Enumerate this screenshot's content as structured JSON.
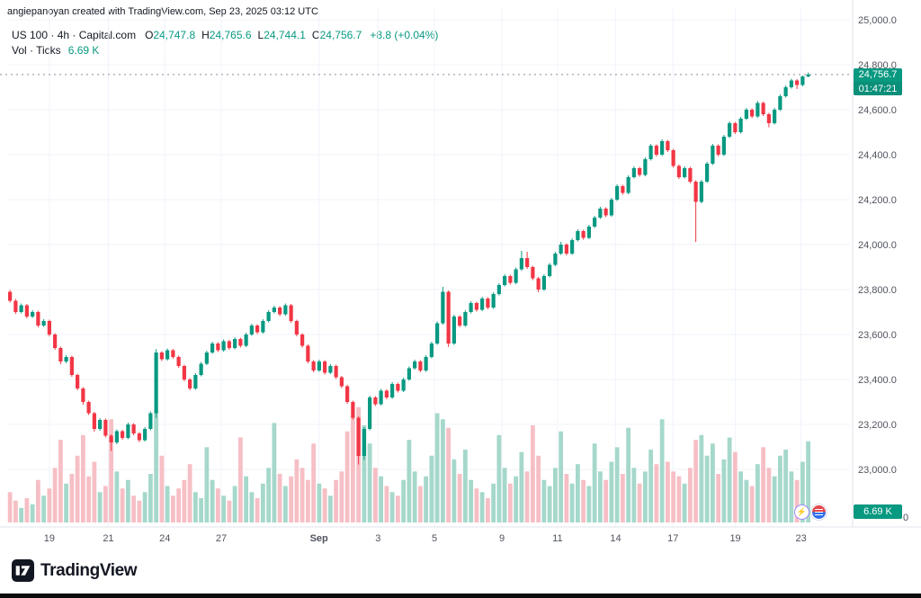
{
  "attribution": "angiepanoyan created with TradingView.com, Sep 23, 2025 03:12 UTC",
  "legend": {
    "symbol": "US 100 · 4h · Capital.com",
    "ohlc": [
      {
        "label": "O",
        "value": "24,747.8"
      },
      {
        "label": "H",
        "value": "24,765.6"
      },
      {
        "label": "L",
        "value": "24,744.1"
      },
      {
        "label": "C",
        "value": "24,756.7"
      }
    ],
    "change": "+8.8 (+0.04%)",
    "volume_label": "Vol · Ticks",
    "volume_value": "6.69 K"
  },
  "badges": {
    "last_price": "24,756.7",
    "countdown": "01:47:21",
    "volume": "6.69 K",
    "volume_axis_zero": "0"
  },
  "footer": {
    "logo_text": "TradingView"
  },
  "colors": {
    "up": "#089981",
    "down": "#f23645",
    "vol_up": "#a5d8cb",
    "vol_down": "#f6bfc5",
    "grid": "#f0f3fa",
    "axis_line": "#e0e3eb",
    "axis_text": "#50535e",
    "text": "#131722",
    "price_line": "#8a8e98",
    "badge": "#089981"
  },
  "chart_data": {
    "type": "candlestick",
    "title": "US 100 · 4h · Capital.com",
    "symbol": "US 100",
    "timeframe": "4h",
    "exchange": "Capital.com",
    "volume_pane": true,
    "volume_unit": "K",
    "grid": true,
    "last_price": 24756.7,
    "last_candle": {
      "o": 24747.8,
      "h": 24765.6,
      "l": 24744.1,
      "c": 24756.7,
      "change": 8.8,
      "change_pct": 0.04
    },
    "y_ticks": [
      {
        "v": 25000,
        "label": "25,000.0"
      },
      {
        "v": 24800,
        "label": "24,800.0"
      },
      {
        "v": 24600,
        "label": "24,600.0"
      },
      {
        "v": 24400,
        "label": "24,400.0"
      },
      {
        "v": 24200,
        "label": "24,200.0"
      },
      {
        "v": 24000,
        "label": "24,000.0"
      },
      {
        "v": 23800,
        "label": "23,800.0"
      },
      {
        "v": 23600,
        "label": "23,600.0"
      },
      {
        "v": 23400,
        "label": "23,400.0"
      },
      {
        "v": 23200,
        "label": "23,200.0"
      },
      {
        "v": 23000,
        "label": "23,000.0"
      }
    ],
    "x_ticks": [
      {
        "label": "19",
        "pos": 0.05,
        "bold": false
      },
      {
        "label": "21",
        "pos": 0.12,
        "bold": false
      },
      {
        "label": "24",
        "pos": 0.187,
        "bold": false
      },
      {
        "label": "27",
        "pos": 0.254,
        "bold": false
      },
      {
        "label": "Sep",
        "pos": 0.37,
        "bold": true
      },
      {
        "label": "3",
        "pos": 0.44,
        "bold": false
      },
      {
        "label": "5",
        "pos": 0.507,
        "bold": false
      },
      {
        "label": "9",
        "pos": 0.587,
        "bold": false
      },
      {
        "label": "11",
        "pos": 0.653,
        "bold": false
      },
      {
        "label": "14",
        "pos": 0.722,
        "bold": false
      },
      {
        "label": "17",
        "pos": 0.79,
        "bold": false
      },
      {
        "label": "19",
        "pos": 0.864,
        "bold": false
      },
      {
        "label": "23",
        "pos": 0.942,
        "bold": false
      }
    ],
    "ohlcv": [
      [
        23790,
        23798,
        23742,
        23750,
        2.5
      ],
      [
        23750,
        23758,
        23692,
        23700,
        1.8
      ],
      [
        23700,
        23738,
        23694,
        23730,
        1.2
      ],
      [
        23730,
        23736,
        23672,
        23680,
        2.0
      ],
      [
        23680,
        23708,
        23674,
        23700,
        1.5
      ],
      [
        23700,
        23706,
        23632,
        23640,
        3.5
      ],
      [
        23640,
        23668,
        23634,
        23660,
        2.2
      ],
      [
        23660,
        23666,
        23592,
        23600,
        2.8
      ],
      [
        23600,
        23606,
        23532,
        23540,
        4.5
      ],
      [
        23540,
        23546,
        23468,
        23480,
        6.8
      ],
      [
        23480,
        23508,
        23472,
        23500,
        3.2
      ],
      [
        23500,
        23506,
        23412,
        23420,
        4.0
      ],
      [
        23420,
        23426,
        23352,
        23360,
        5.5
      ],
      [
        23360,
        23366,
        23288,
        23300,
        7.2
      ],
      [
        23300,
        23306,
        23242,
        23250,
        3.8
      ],
      [
        23250,
        23256,
        23168,
        23180,
        5.0
      ],
      [
        23180,
        23228,
        23172,
        23220,
        2.5
      ],
      [
        23220,
        23226,
        23142,
        23150,
        3.0
      ],
      [
        23150,
        23156,
        23082,
        23120,
        8.5
      ],
      [
        23120,
        23178,
        23112,
        23170,
        4.2
      ],
      [
        23170,
        23176,
        23132,
        23140,
        2.8
      ],
      [
        23140,
        23208,
        23134,
        23200,
        3.5
      ],
      [
        23200,
        23206,
        23152,
        23160,
        2.2
      ],
      [
        23160,
        23166,
        23122,
        23130,
        1.8
      ],
      [
        23130,
        23188,
        23124,
        23180,
        2.5
      ],
      [
        23180,
        23258,
        23174,
        23250,
        4.0
      ],
      [
        23250,
        23535,
        23230,
        23520,
        9.2
      ],
      [
        23520,
        23526,
        23482,
        23490,
        5.5
      ],
      [
        23490,
        23538,
        23484,
        23530,
        3.0
      ],
      [
        23530,
        23536,
        23492,
        23500,
        2.2
      ],
      [
        23500,
        23506,
        23452,
        23460,
        2.8
      ],
      [
        23460,
        23466,
        23392,
        23400,
        3.5
      ],
      [
        23400,
        23406,
        23352,
        23360,
        4.8
      ],
      [
        23360,
        23428,
        23354,
        23420,
        2.5
      ],
      [
        23420,
        23478,
        23414,
        23470,
        2.0
      ],
      [
        23470,
        23528,
        23464,
        23520,
        6.2
      ],
      [
        23520,
        23568,
        23514,
        23560,
        3.5
      ],
      [
        23560,
        23566,
        23522,
        23530,
        2.8
      ],
      [
        23530,
        23578,
        23524,
        23570,
        2.2
      ],
      [
        23570,
        23576,
        23532,
        23540,
        1.8
      ],
      [
        23540,
        23588,
        23534,
        23580,
        3.0
      ],
      [
        23580,
        23586,
        23542,
        23550,
        7.0
      ],
      [
        23550,
        23608,
        23544,
        23600,
        3.8
      ],
      [
        23600,
        23648,
        23594,
        23640,
        2.5
      ],
      [
        23640,
        23646,
        23602,
        23610,
        2.0
      ],
      [
        23610,
        23668,
        23604,
        23660,
        3.2
      ],
      [
        23660,
        23708,
        23654,
        23700,
        4.5
      ],
      [
        23700,
        23728,
        23694,
        23720,
        8.2
      ],
      [
        23720,
        23726,
        23682,
        23690,
        4.0
      ],
      [
        23690,
        23738,
        23684,
        23730,
        3.0
      ],
      [
        23730,
        23736,
        23652,
        23660,
        3.8
      ],
      [
        23660,
        23666,
        23592,
        23600,
        5.2
      ],
      [
        23600,
        23606,
        23542,
        23550,
        4.5
      ],
      [
        23550,
        23556,
        23472,
        23480,
        3.5
      ],
      [
        23480,
        23486,
        23432,
        23440,
        6.5
      ],
      [
        23440,
        23488,
        23434,
        23480,
        3.2
      ],
      [
        23480,
        23486,
        23422,
        23430,
        2.8
      ],
      [
        23430,
        23468,
        23424,
        23460,
        2.2
      ],
      [
        23460,
        23466,
        23402,
        23410,
        3.5
      ],
      [
        23410,
        23416,
        23362,
        23370,
        4.2
      ],
      [
        23370,
        23376,
        23292,
        23300,
        7.5
      ],
      [
        23300,
        23306,
        23222,
        23230,
        8.8
      ],
      [
        23230,
        23236,
        23022,
        23060,
        9.5
      ],
      [
        23060,
        23188,
        23042,
        23180,
        8.0
      ],
      [
        23180,
        23328,
        23174,
        23320,
        6.5
      ],
      [
        23320,
        23326,
        23282,
        23290,
        4.5
      ],
      [
        23290,
        23358,
        23284,
        23350,
        3.8
      ],
      [
        23350,
        23356,
        23312,
        23320,
        3.0
      ],
      [
        23320,
        23388,
        23314,
        23380,
        2.5
      ],
      [
        23380,
        23386,
        23342,
        23350,
        2.2
      ],
      [
        23350,
        23408,
        23344,
        23400,
        3.5
      ],
      [
        23400,
        23458,
        23394,
        23450,
        6.8
      ],
      [
        23450,
        23488,
        23444,
        23480,
        4.2
      ],
      [
        23480,
        23486,
        23432,
        23440,
        3.0
      ],
      [
        23440,
        23508,
        23434,
        23500,
        3.8
      ],
      [
        23500,
        23568,
        23494,
        23560,
        5.5
      ],
      [
        23560,
        23658,
        23554,
        23650,
        9.0
      ],
      [
        23650,
        23812,
        23644,
        23790,
        8.5
      ],
      [
        23790,
        23796,
        23545,
        23560,
        7.8
      ],
      [
        23560,
        23688,
        23554,
        23680,
        5.2
      ],
      [
        23680,
        23686,
        23632,
        23640,
        4.0
      ],
      [
        23640,
        23708,
        23634,
        23700,
        6.0
      ],
      [
        23700,
        23748,
        23694,
        23740,
        3.5
      ],
      [
        23740,
        23746,
        23702,
        23710,
        2.8
      ],
      [
        23710,
        23768,
        23704,
        23760,
        2.5
      ],
      [
        23760,
        23766,
        23712,
        23720,
        2.0
      ],
      [
        23720,
        23788,
        23714,
        23780,
        3.2
      ],
      [
        23780,
        23828,
        23774,
        23820,
        7.2
      ],
      [
        23820,
        23868,
        23814,
        23860,
        4.5
      ],
      [
        23860,
        23866,
        23822,
        23830,
        3.2
      ],
      [
        23830,
        23898,
        23824,
        23890,
        3.8
      ],
      [
        23890,
        23972,
        23884,
        23940,
        5.8
      ],
      [
        23940,
        23968,
        23892,
        23900,
        4.2
      ],
      [
        23900,
        23906,
        23842,
        23850,
        8.0
      ],
      [
        23850,
        23856,
        23788,
        23800,
        5.5
      ],
      [
        23800,
        23868,
        23794,
        23860,
        3.5
      ],
      [
        23860,
        23918,
        23854,
        23910,
        3.0
      ],
      [
        23910,
        23968,
        23904,
        23960,
        4.5
      ],
      [
        23960,
        24012,
        23954,
        24000,
        7.5
      ],
      [
        24000,
        24006,
        23952,
        23960,
        4.0
      ],
      [
        23960,
        24028,
        23954,
        24020,
        3.2
      ],
      [
        24020,
        24068,
        24014,
        24060,
        4.8
      ],
      [
        24060,
        24066,
        24022,
        24030,
        3.5
      ],
      [
        24030,
        24088,
        24024,
        24080,
        3.0
      ],
      [
        24080,
        24128,
        24074,
        24120,
        6.5
      ],
      [
        24120,
        24168,
        24114,
        24160,
        4.2
      ],
      [
        24160,
        24166,
        24122,
        24130,
        3.5
      ],
      [
        24130,
        24208,
        24124,
        24200,
        5.0
      ],
      [
        24200,
        24268,
        24194,
        24260,
        6.2
      ],
      [
        24260,
        24266,
        24222,
        24230,
        4.0
      ],
      [
        24230,
        24308,
        24224,
        24300,
        7.8
      ],
      [
        24300,
        24348,
        24294,
        24340,
        4.5
      ],
      [
        24340,
        24346,
        24302,
        24310,
        3.2
      ],
      [
        24310,
        24388,
        24304,
        24380,
        4.2
      ],
      [
        24380,
        24448,
        24374,
        24440,
        6.0
      ],
      [
        24440,
        24446,
        24392,
        24400,
        4.8
      ],
      [
        24400,
        24468,
        24394,
        24460,
        8.5
      ],
      [
        24460,
        24466,
        24412,
        24420,
        5.0
      ],
      [
        24420,
        24426,
        24342,
        24350,
        4.2
      ],
      [
        24350,
        24356,
        24292,
        24300,
        3.8
      ],
      [
        24300,
        24348,
        24294,
        24340,
        3.2
      ],
      [
        24340,
        24346,
        24272,
        24280,
        4.5
      ],
      [
        24280,
        24286,
        24012,
        24190,
        6.8
      ],
      [
        24190,
        24288,
        24184,
        24280,
        7.2
      ],
      [
        24280,
        24368,
        24274,
        24360,
        5.5
      ],
      [
        24360,
        24448,
        24354,
        24440,
        6.5
      ],
      [
        24440,
        24446,
        24392,
        24400,
        4.0
      ],
      [
        24400,
        24488,
        24394,
        24480,
        5.2
      ],
      [
        24480,
        24548,
        24474,
        24540,
        7.0
      ],
      [
        24540,
        24546,
        24492,
        24500,
        5.8
      ],
      [
        24500,
        24568,
        24494,
        24560,
        4.2
      ],
      [
        24560,
        24608,
        24554,
        24600,
        3.5
      ],
      [
        24600,
        24606,
        24562,
        24570,
        3.0
      ],
      [
        24570,
        24638,
        24564,
        24630,
        4.8
      ],
      [
        24630,
        24636,
        24572,
        24580,
        6.2
      ],
      [
        24580,
        24586,
        24522,
        24540,
        4.5
      ],
      [
        24540,
        24608,
        24534,
        24600,
        3.8
      ],
      [
        24600,
        24668,
        24594,
        24660,
        5.5
      ],
      [
        24660,
        24708,
        24654,
        24700,
        6.0
      ],
      [
        24700,
        24738,
        24694,
        24730,
        4.2
      ],
      [
        24730,
        24736,
        24692,
        24710,
        3.5
      ],
      [
        24710,
        24752,
        24704,
        24747.8,
        5.0
      ],
      [
        24747.8,
        24765.6,
        24744.1,
        24756.7,
        6.69
      ]
    ]
  }
}
